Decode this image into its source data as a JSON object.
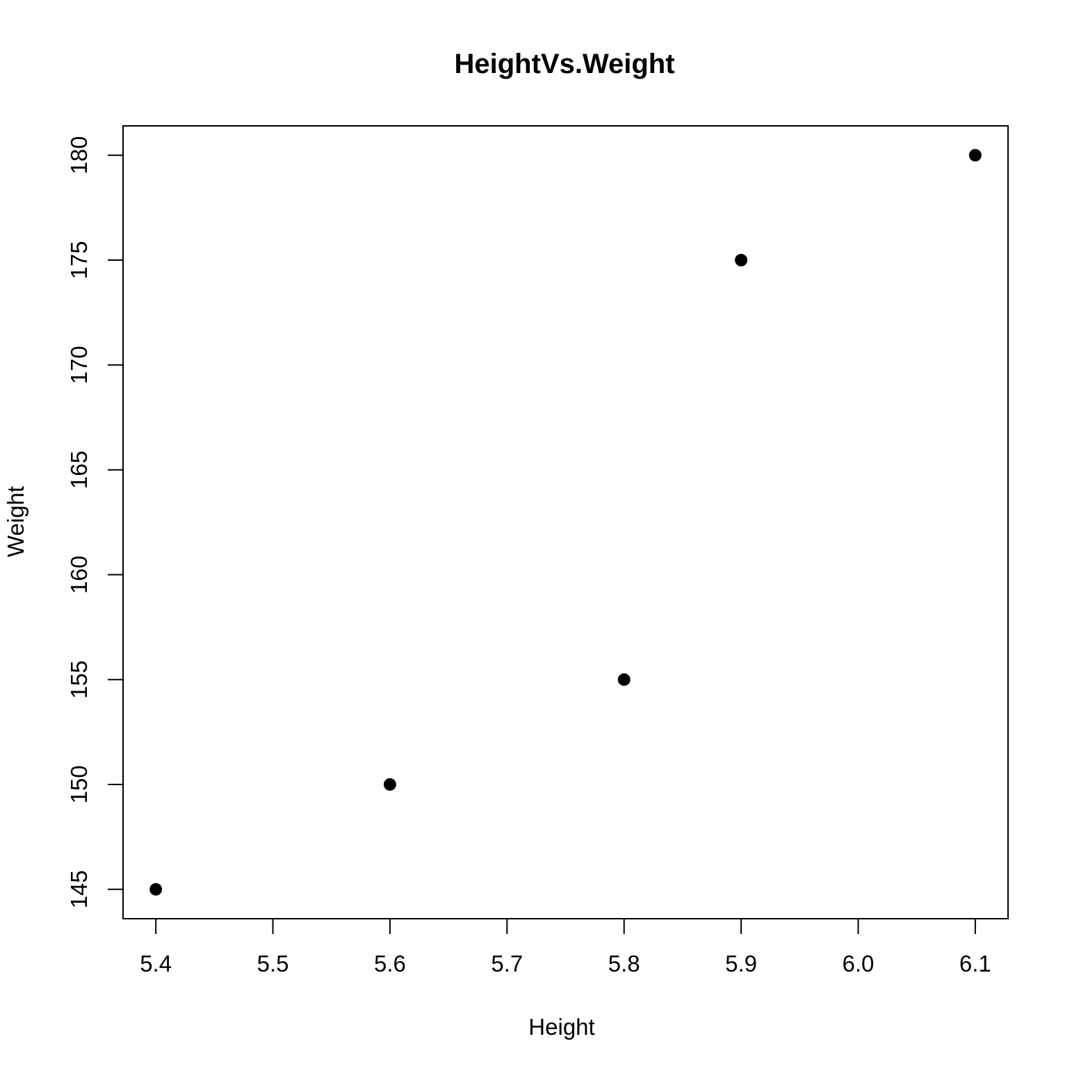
{
  "chart_data": {
    "type": "scatter",
    "title": "HeightVs.Weight",
    "xlabel": "Height",
    "ylabel": "Weight",
    "x": [
      5.4,
      5.6,
      5.8,
      5.9,
      6.1
    ],
    "y": [
      145,
      150,
      155,
      175,
      180
    ],
    "xlim": [
      5.372,
      6.128
    ],
    "ylim": [
      143.6,
      181.4
    ],
    "xticks": [
      5.4,
      5.5,
      5.6,
      5.7,
      5.8,
      5.9,
      6.0,
      6.1
    ],
    "xtick_labels": [
      "5.4",
      "5.5",
      "5.6",
      "5.7",
      "5.8",
      "5.9",
      "6.0",
      "6.1"
    ],
    "yticks": [
      145,
      150,
      155,
      160,
      165,
      170,
      175,
      180
    ],
    "ytick_labels": [
      "145",
      "150",
      "155",
      "160",
      "165",
      "170",
      "175",
      "180"
    ],
    "grid": false,
    "legend": "none",
    "colors": {
      "point": "#000000",
      "axis": "#000000",
      "background": "#ffffff"
    }
  }
}
